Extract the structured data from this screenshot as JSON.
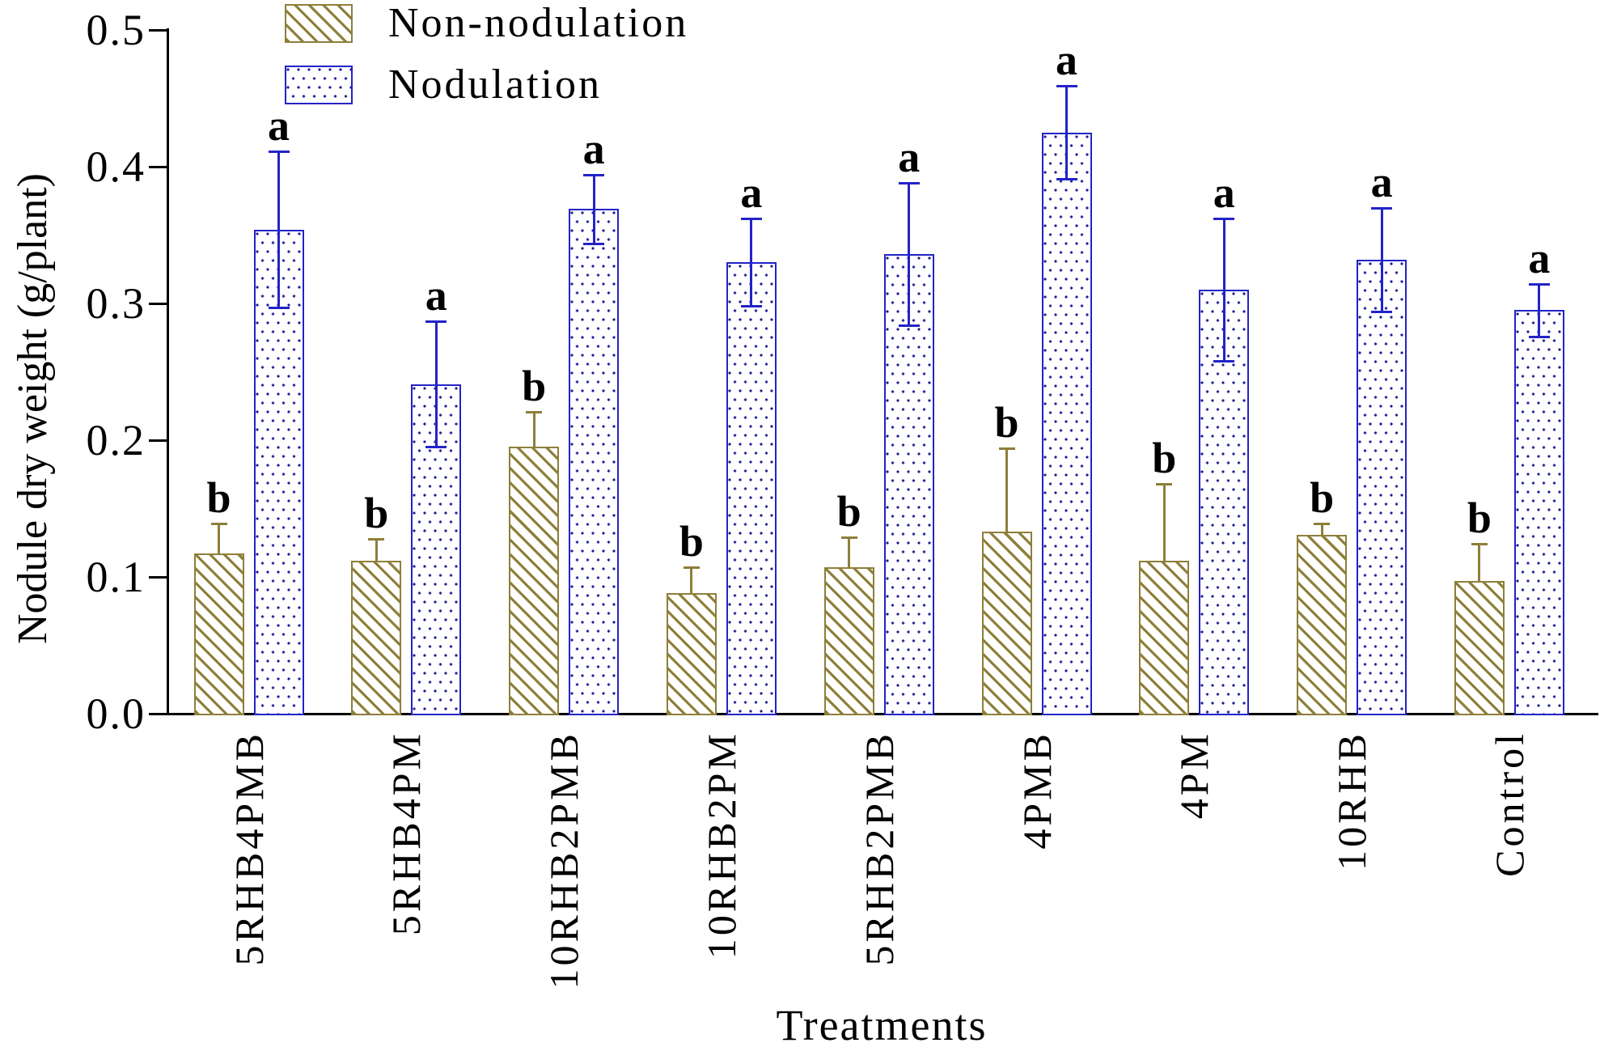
{
  "figure_title": "",
  "axes": {
    "y": {
      "title": "Nodule dry weight (g/plant)",
      "min": 0.0,
      "max": 0.5,
      "tick_step": 0.1,
      "tick_labels": [
        "0.0",
        "0.1",
        "0.2",
        "0.3",
        "0.4",
        "0.5"
      ]
    },
    "x": {
      "title": "Treatments"
    }
  },
  "legend": {
    "items": [
      {
        "label": "Non-nodulation",
        "swatch": "olive-hatch-swatch"
      },
      {
        "label": "Nodulation",
        "swatch": "blue-dots-swatch"
      }
    ]
  },
  "colors": {
    "non_nodulation": "#8E7F3A",
    "nodulation_border": "#2323C8",
    "nodulation_dot": "#1C1C96",
    "axis": "#000000",
    "background": "#FFFFFF"
  },
  "chart_data": {
    "type": "bar",
    "title": "",
    "xlabel": "Treatments",
    "ylabel": "Nodule dry weight (g/plant)",
    "ylim": [
      0.0,
      0.5
    ],
    "grid": false,
    "legend_position": "top-left-inside",
    "categories": [
      "5RHB4PMB",
      "5RHB4PM",
      "10RHB2PMB",
      "10RHB2PM",
      "5RHB2PMB",
      "4PMB",
      "4PM",
      "10RHB",
      "Control"
    ],
    "series": [
      {
        "name": "Non-nodulation",
        "pattern": "diagonal-hatch",
        "values": [
          0.117,
          0.112,
          0.195,
          0.088,
          0.107,
          0.133,
          0.112,
          0.131,
          0.097
        ],
        "errors": [
          0.022,
          0.016,
          0.026,
          0.019,
          0.022,
          0.061,
          0.056,
          0.008,
          0.027
        ],
        "letters": [
          "b",
          "b",
          "b",
          "b",
          "b",
          "b",
          "b",
          "b",
          "b"
        ]
      },
      {
        "name": "Nodulation",
        "pattern": "dots",
        "values": [
          0.354,
          0.241,
          0.369,
          0.33,
          0.336,
          0.425,
          0.31,
          0.332,
          0.295
        ],
        "errors": [
          0.057,
          0.046,
          0.025,
          0.032,
          0.052,
          0.034,
          0.052,
          0.038,
          0.019
        ],
        "letters": [
          "a",
          "a",
          "a",
          "a",
          "a",
          "a",
          "a",
          "a",
          "a"
        ]
      }
    ]
  }
}
